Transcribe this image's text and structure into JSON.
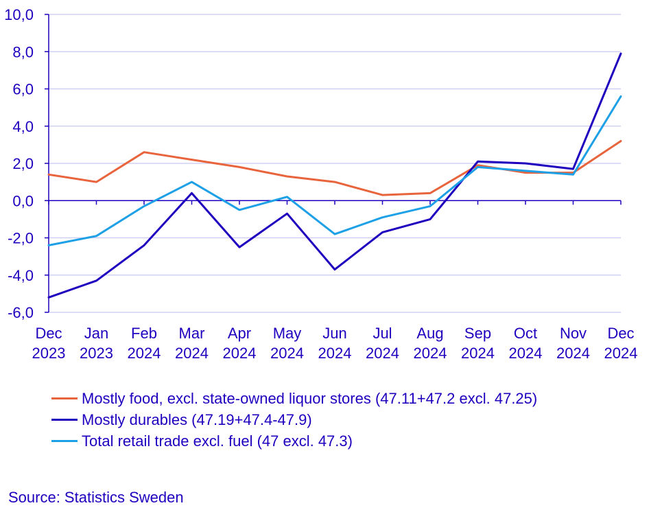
{
  "chart_data": {
    "type": "line",
    "categories": [
      [
        "Dec",
        "2023"
      ],
      [
        "Jan",
        "2023"
      ],
      [
        "Feb",
        "2024"
      ],
      [
        "Mar",
        "2024"
      ],
      [
        "Apr",
        "2024"
      ],
      [
        "May",
        "2024"
      ],
      [
        "Jun",
        "2024"
      ],
      [
        "Jul",
        "2024"
      ],
      [
        "Aug",
        "2024"
      ],
      [
        "Sep",
        "2024"
      ],
      [
        "Oct",
        "2024"
      ],
      [
        "Nov",
        "2024"
      ],
      [
        "Dec",
        "2024"
      ]
    ],
    "ylim": [
      -6,
      10
    ],
    "yticks": [
      -6,
      -4,
      -2,
      0,
      2,
      4,
      6,
      8,
      10
    ],
    "ytick_labels": [
      "-6,0",
      "-4,0",
      "-2,0",
      "0,0",
      "2,0",
      "4,0",
      "6,0",
      "8,0",
      "10,0"
    ],
    "grid": true,
    "series": [
      {
        "name": "Mostly food, excl. state-owned liquor stores (47.11+47.2 excl. 47.25)",
        "color": "#e8643c",
        "values": [
          1.4,
          1.0,
          2.6,
          2.2,
          1.8,
          1.3,
          1.0,
          0.3,
          0.4,
          1.9,
          1.5,
          1.5,
          3.2
        ]
      },
      {
        "name": "Mostly durables (47.19+47.4-47.9)",
        "color": "#1e00be",
        "values": [
          -5.2,
          -4.3,
          -2.4,
          0.4,
          -2.5,
          -0.7,
          -3.7,
          -1.7,
          -1.0,
          2.1,
          2.0,
          1.7,
          7.9
        ]
      },
      {
        "name": "Total retail trade excl. fuel (47 excl. 47.3)",
        "color": "#1ea0e6",
        "values": [
          -2.4,
          -1.9,
          -0.3,
          1.0,
          -0.5,
          0.2,
          -1.8,
          -0.9,
          -0.3,
          1.8,
          1.6,
          1.4,
          5.6
        ]
      }
    ]
  },
  "footer": {
    "source": "Source: Statistics Sweden"
  }
}
